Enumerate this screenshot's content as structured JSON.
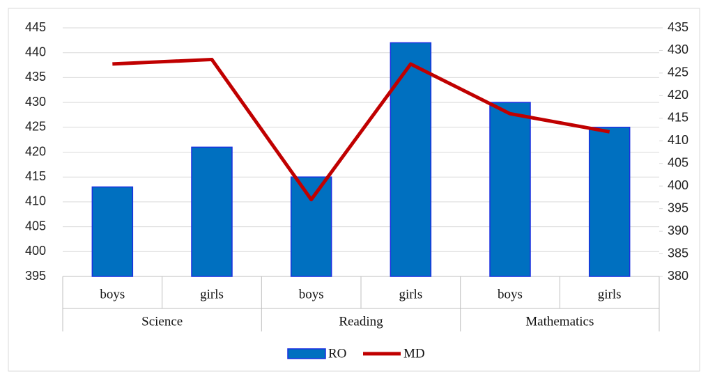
{
  "chart_data": {
    "type": "bar_line",
    "categories": [
      "boys",
      "girls",
      "boys",
      "girls",
      "boys",
      "girls"
    ],
    "groups": [
      "Science",
      "Reading",
      "Mathematics"
    ],
    "series": [
      {
        "name": "RO",
        "type": "bar",
        "color": "#0070c0",
        "values": [
          413,
          421,
          415,
          442,
          430,
          425
        ]
      },
      {
        "name": "MD",
        "type": "line",
        "axis": "y2",
        "color": "#c00000",
        "values": [
          427,
          428,
          397,
          427,
          416,
          412
        ]
      }
    ],
    "ylim": [
      395,
      445
    ],
    "yticks": [
      395,
      400,
      405,
      410,
      415,
      420,
      425,
      430,
      435,
      440,
      445
    ],
    "y2lim": [
      380,
      435
    ],
    "y2ticks": [
      380,
      385,
      390,
      395,
      400,
      405,
      410,
      415,
      420,
      425,
      430,
      435
    ],
    "grid": true,
    "legend": "bottom"
  }
}
